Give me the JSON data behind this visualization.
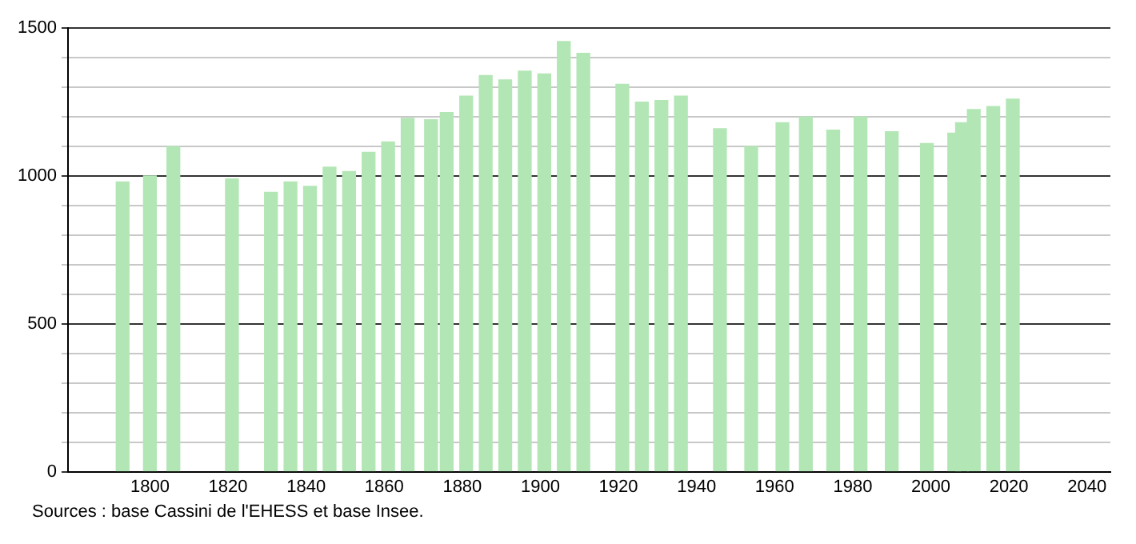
{
  "chart_data": {
    "type": "bar",
    "x": [
      1793,
      1800,
      1806,
      1821,
      1831,
      1836,
      1841,
      1846,
      1851,
      1856,
      1861,
      1866,
      1872,
      1876,
      1881,
      1886,
      1891,
      1896,
      1901,
      1906,
      1911,
      1921,
      1926,
      1931,
      1936,
      1946,
      1954,
      1962,
      1968,
      1975,
      1982,
      1990,
      1999,
      2006,
      2008,
      2011,
      2016,
      2021
    ],
    "values": [
      980,
      1000,
      1100,
      990,
      945,
      980,
      965,
      1030,
      1015,
      1080,
      1115,
      1195,
      1190,
      1215,
      1270,
      1340,
      1325,
      1355,
      1345,
      1455,
      1415,
      1310,
      1250,
      1255,
      1270,
      1160,
      1100,
      1180,
      1200,
      1155,
      1200,
      1150,
      1110,
      1145,
      1180,
      1225,
      1235,
      1260
    ],
    "color": "#b3e6b5",
    "xlim": [
      1779,
      2046
    ],
    "xticks": [
      1800,
      1820,
      1840,
      1860,
      1880,
      1900,
      1920,
      1940,
      1960,
      1980,
      2000,
      2020,
      2040
    ],
    "ylim": [
      0,
      1500
    ],
    "yticks": [
      0,
      {
        "value": 100,
        "label": null
      },
      {
        "value": 200,
        "label": null
      },
      {
        "value": 300,
        "label": null
      },
      {
        "value": 400,
        "label": null
      },
      500,
      {
        "value": 600,
        "label": null
      },
      {
        "value": 700,
        "label": null
      },
      {
        "value": 800,
        "label": null
      },
      {
        "value": 900,
        "label": null
      },
      1000,
      {
        "value": 1100,
        "label": null
      },
      {
        "value": 1200,
        "label": null
      },
      {
        "value": 1300,
        "label": null
      },
      {
        "value": 1400,
        "label": null
      },
      1500
    ],
    "grid": "y",
    "legend": false,
    "annotations": [
      "Sources : base Cassini de l'EHESS et base Insee."
    ]
  }
}
